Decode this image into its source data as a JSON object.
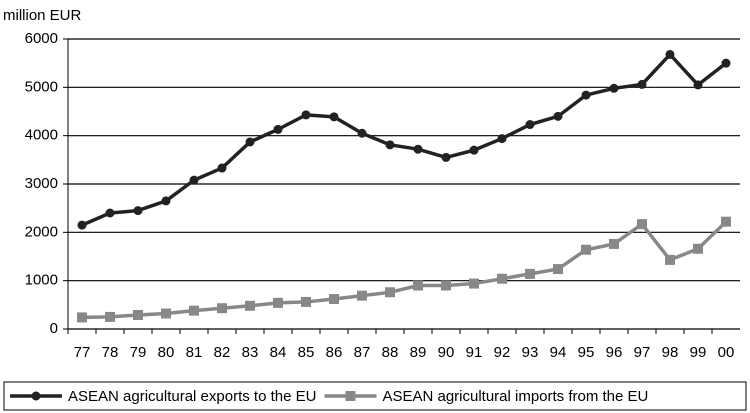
{
  "chart_data": {
    "type": "line",
    "y_axis_label": "million EUR",
    "categories": [
      "77",
      "78",
      "79",
      "80",
      "81",
      "82",
      "83",
      "84",
      "85",
      "86",
      "87",
      "88",
      "89",
      "90",
      "91",
      "92",
      "93",
      "94",
      "95",
      "96",
      "97",
      "98",
      "99",
      "00"
    ],
    "series": [
      {
        "name": "ASEAN agricultural exports to the EU",
        "color": "#222222",
        "marker": "circle",
        "values": [
          2150,
          2400,
          2450,
          2650,
          3080,
          3330,
          3870,
          4130,
          4430,
          4390,
          4050,
          3810,
          3720,
          3550,
          3700,
          3940,
          4230,
          4400,
          4840,
          4980,
          5060,
          5680,
          5050,
          5500
        ]
      },
      {
        "name": "ASEAN agricultural imports from the EU",
        "color": "#888888",
        "marker": "square",
        "values": [
          240,
          250,
          290,
          320,
          380,
          430,
          480,
          540,
          560,
          620,
          690,
          760,
          900,
          900,
          940,
          1040,
          1140,
          1240,
          1640,
          1760,
          2170,
          1430,
          1660,
          2220
        ]
      }
    ],
    "ylim": [
      0,
      6000
    ],
    "yticks": [
      0,
      1000,
      2000,
      3000,
      4000,
      5000,
      6000
    ],
    "grid": true
  }
}
